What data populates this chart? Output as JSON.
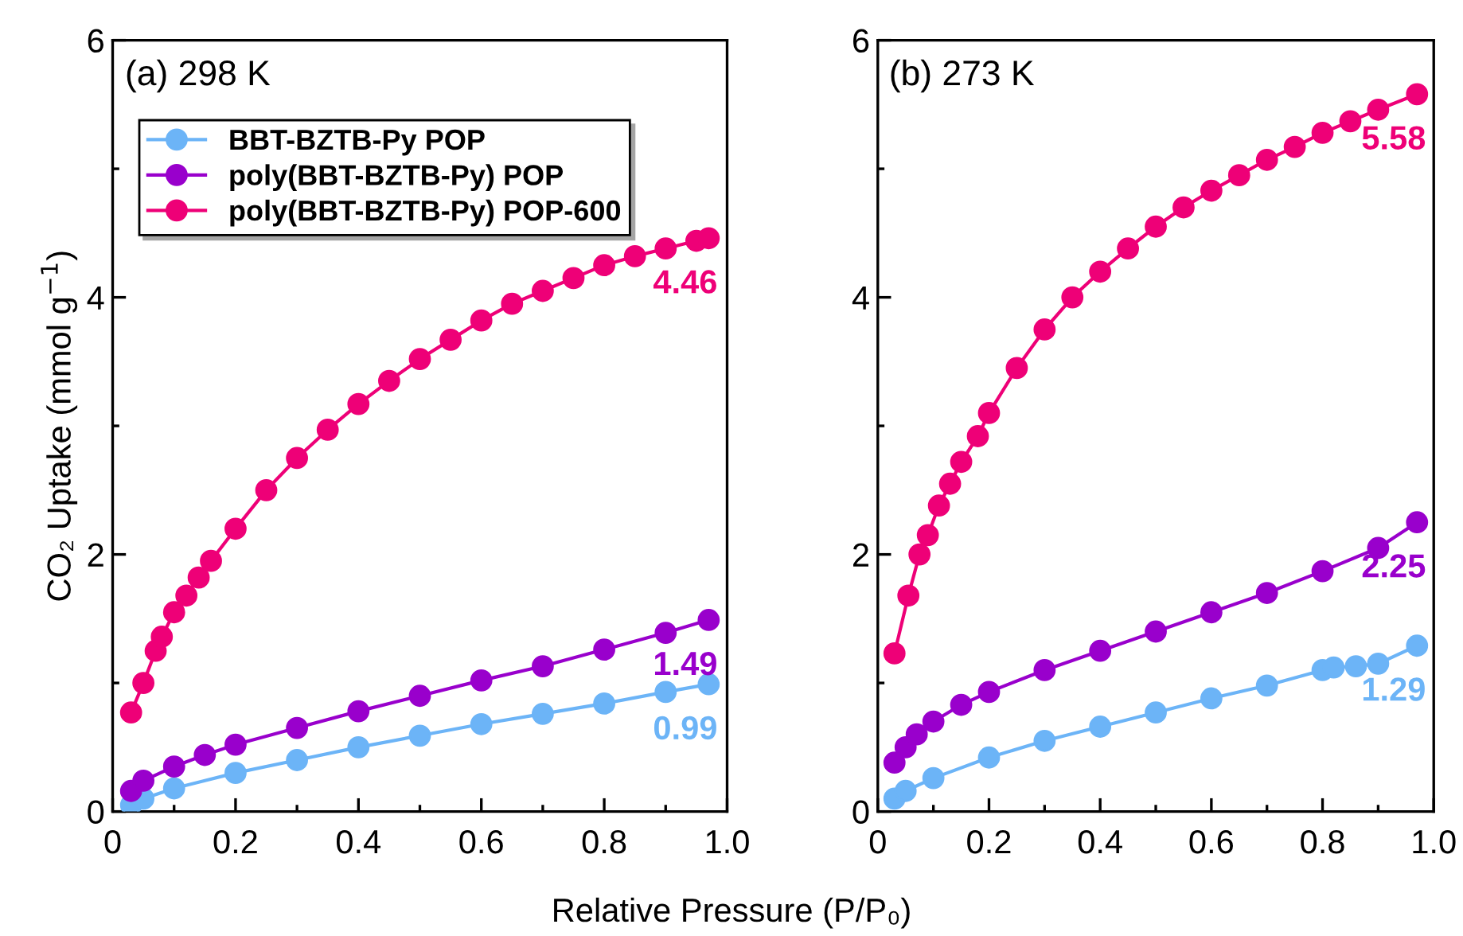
{
  "chart_data": [
    {
      "type": "line",
      "title": "(a) 298 K",
      "xlabel": "Relative Pressure (P/P₀)",
      "ylabel": "CO₂ Uptake (mmol g$^{−1}$)",
      "marker": "circle",
      "line_style": "solid",
      "legend": "top left",
      "grid": false,
      "xlim": [
        0,
        1
      ],
      "ylim": [
        0,
        6
      ],
      "xticks": [
        0,
        {
          "value": 0.1,
          "label": null
        },
        {
          "value": 0.2,
          "label": "0.2"
        },
        {
          "value": 0.3,
          "label": null
        },
        {
          "value": 0.4,
          "label": "0.4"
        },
        {
          "value": 0.5,
          "label": null
        },
        {
          "value": 0.6,
          "label": "0.6"
        },
        {
          "value": 0.7,
          "label": null
        },
        {
          "value": 0.8,
          "label": "0.8"
        },
        {
          "value": 0.9,
          "label": null
        },
        {
          "value": 1,
          "label": "1.0"
        }
      ],
      "yticks": [
        0,
        {
          "value": 1,
          "label": null
        },
        2,
        {
          "value": 3,
          "label": null
        },
        4,
        {
          "value": 5,
          "label": null
        },
        6
      ],
      "series": [
        {
          "name": "BBT-BZTB-Py POP",
          "color": "#6cb4f7",
          "x": [
            0.03,
            0.05,
            0.1,
            0.2,
            0.3,
            0.4,
            0.5,
            0.6,
            0.7,
            0.8,
            0.9,
            0.97
          ],
          "values": [
            0.05,
            0.1,
            0.18,
            0.3,
            0.4,
            0.5,
            0.59,
            0.68,
            0.76,
            0.84,
            0.93,
            0.99
          ],
          "value_labels": [
            null,
            null,
            null,
            null,
            null,
            null,
            null,
            null,
            null,
            null,
            null,
            "0.99"
          ]
        },
        {
          "name": "poly(BBT-BZTB-Py) POP",
          "color": "#9900cc",
          "x": [
            0.03,
            0.05,
            0.1,
            0.15,
            0.2,
            0.3,
            0.4,
            0.5,
            0.6,
            0.7,
            0.8,
            0.9,
            0.97
          ],
          "values": [
            0.16,
            0.24,
            0.35,
            0.44,
            0.52,
            0.65,
            0.78,
            0.9,
            1.02,
            1.13,
            1.26,
            1.39,
            1.49
          ],
          "value_labels": [
            null,
            null,
            null,
            null,
            null,
            null,
            null,
            null,
            null,
            null,
            null,
            null,
            "1.49"
          ]
        },
        {
          "name": "poly(BBT-BZTB-Py) POP-600",
          "color": "#ee0077",
          "x": [
            0.03,
            0.05,
            0.07,
            0.08,
            0.1,
            0.12,
            0.14,
            0.16,
            0.2,
            0.25,
            0.3,
            0.35,
            0.4,
            0.45,
            0.5,
            0.55,
            0.6,
            0.65,
            0.7,
            0.75,
            0.8,
            0.85,
            0.9,
            0.95,
            0.97
          ],
          "values": [
            0.77,
            1.0,
            1.25,
            1.36,
            1.55,
            1.68,
            1.82,
            1.95,
            2.2,
            2.5,
            2.75,
            2.97,
            3.17,
            3.35,
            3.52,
            3.67,
            3.82,
            3.95,
            4.05,
            4.15,
            4.25,
            4.32,
            4.38,
            4.44,
            4.46
          ],
          "value_labels": [
            null,
            null,
            null,
            null,
            null,
            null,
            null,
            null,
            null,
            null,
            null,
            null,
            null,
            null,
            null,
            null,
            null,
            null,
            null,
            null,
            null,
            null,
            null,
            null,
            "4.46"
          ]
        }
      ]
    },
    {
      "type": "line",
      "title": "(b) 273 K",
      "marker": "circle",
      "line_style": "solid",
      "grid": false,
      "xlim": [
        0,
        1
      ],
      "ylim": [
        0,
        6
      ],
      "xticks": [
        0,
        {
          "value": 0.1,
          "label": null
        },
        {
          "value": 0.2,
          "label": "0.2"
        },
        {
          "value": 0.3,
          "label": null
        },
        {
          "value": 0.4,
          "label": "0.4"
        },
        {
          "value": 0.5,
          "label": null
        },
        {
          "value": 0.6,
          "label": "0.6"
        },
        {
          "value": 0.7,
          "label": null
        },
        {
          "value": 0.8,
          "label": "0.8"
        },
        {
          "value": 0.9,
          "label": null
        },
        {
          "value": 1,
          "label": "1.0"
        }
      ],
      "yticks": [
        0,
        {
          "value": 1,
          "label": null
        },
        2,
        {
          "value": 3,
          "label": null
        },
        4,
        {
          "value": 5,
          "label": null
        },
        6
      ],
      "series": [
        {
          "color": "#6cb4f7",
          "x": [
            0.03,
            0.05,
            0.1,
            0.2,
            0.3,
            0.4,
            0.5,
            0.6,
            0.7,
            0.8,
            0.82,
            0.86,
            0.9,
            0.97
          ],
          "values": [
            0.1,
            0.16,
            0.26,
            0.42,
            0.55,
            0.66,
            0.77,
            0.88,
            0.98,
            1.1,
            1.12,
            1.13,
            1.15,
            1.29
          ],
          "value_labels": [
            null,
            null,
            null,
            null,
            null,
            null,
            null,
            null,
            null,
            null,
            null,
            null,
            null,
            "1.29"
          ]
        },
        {
          "color": "#9900cc",
          "x": [
            0.03,
            0.05,
            0.07,
            0.1,
            0.15,
            0.2,
            0.3,
            0.4,
            0.5,
            0.6,
            0.7,
            0.8,
            0.9,
            0.97
          ],
          "values": [
            0.38,
            0.5,
            0.6,
            0.7,
            0.83,
            0.93,
            1.1,
            1.25,
            1.4,
            1.55,
            1.7,
            1.87,
            2.05,
            2.25
          ],
          "value_labels": [
            null,
            null,
            null,
            null,
            null,
            null,
            null,
            null,
            null,
            null,
            null,
            null,
            null,
            "2.25"
          ]
        },
        {
          "color": "#ee0077",
          "x": [
            0.03,
            0.055,
            0.075,
            0.09,
            0.11,
            0.13,
            0.15,
            0.18,
            0.2,
            0.25,
            0.3,
            0.35,
            0.4,
            0.45,
            0.5,
            0.55,
            0.6,
            0.65,
            0.7,
            0.75,
            0.8,
            0.85,
            0.9,
            0.97
          ],
          "values": [
            1.23,
            1.68,
            2.0,
            2.15,
            2.38,
            2.55,
            2.72,
            2.92,
            3.1,
            3.45,
            3.75,
            4.0,
            4.2,
            4.38,
            4.55,
            4.7,
            4.83,
            4.95,
            5.07,
            5.17,
            5.28,
            5.37,
            5.46,
            5.58
          ],
          "value_labels": [
            null,
            null,
            null,
            null,
            null,
            null,
            null,
            null,
            null,
            null,
            null,
            null,
            null,
            null,
            null,
            null,
            null,
            null,
            null,
            null,
            null,
            null,
            null,
            "5.58"
          ]
        }
      ]
    }
  ]
}
